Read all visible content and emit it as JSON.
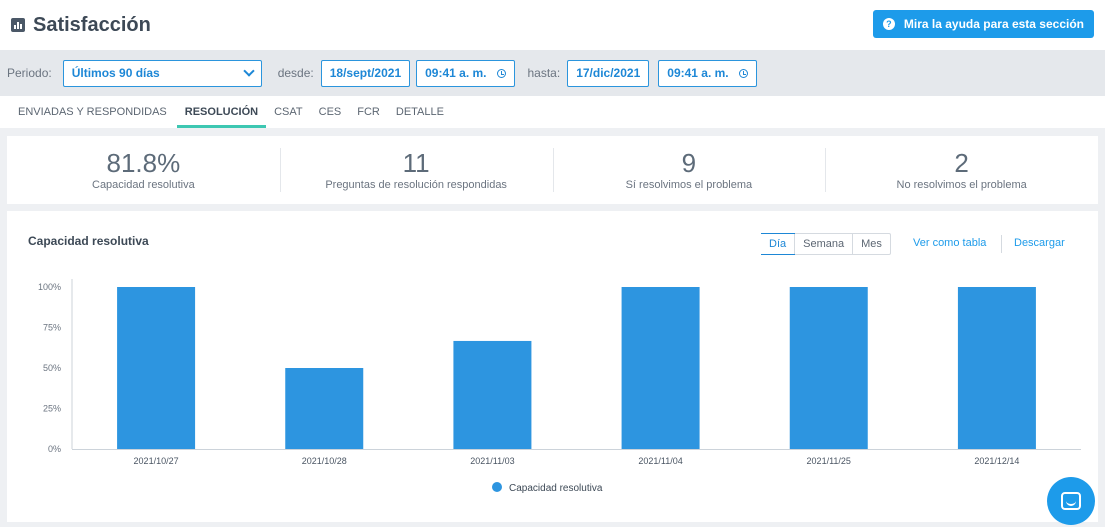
{
  "header": {
    "title": "Satisfacción",
    "help_label": "Mira la ayuda para esta sección"
  },
  "filters": {
    "period_label": "Periodo:",
    "period_value": "Últimos 90 días",
    "from_label": "desde:",
    "from_date": "18/sept/2021",
    "from_time": "09:41 a. m.",
    "to_label": "hasta:",
    "to_date": "17/dic/2021",
    "to_time": "09:41 a. m."
  },
  "tabs": [
    {
      "label": "ENVIADAS Y RESPONDIDAS"
    },
    {
      "label": "RESOLUCIÓN"
    },
    {
      "label": "CSAT"
    },
    {
      "label": "CES"
    },
    {
      "label": "FCR"
    },
    {
      "label": "DETALLE"
    }
  ],
  "active_tab": "RESOLUCIÓN",
  "stats": [
    {
      "value": "81.8%",
      "label": "Capacidad resolutiva"
    },
    {
      "value": "11",
      "label": "Preguntas de resolución respondidas"
    },
    {
      "value": "9",
      "label": "Sí resolvimos el problema"
    },
    {
      "value": "2",
      "label": "No resolvimos el problema"
    }
  ],
  "card": {
    "title": "Capacidad resolutiva",
    "granularity": [
      "Día",
      "Semana",
      "Mes"
    ],
    "active_granularity": "Día",
    "table_link": "Ver como tabla",
    "download_link": "Descargar"
  },
  "colors": {
    "accent": "#1d9bea",
    "bar": "#2d95e0",
    "tab_underline": "#3dc7b2"
  },
  "chart_data": {
    "type": "bar",
    "title": "",
    "categories": [
      "2021/10/27",
      "2021/10/28",
      "2021/11/03",
      "2021/11/04",
      "2021/11/25",
      "2021/12/14"
    ],
    "series": [
      {
        "name": "Capacidad resolutiva",
        "values": [
          100,
          50,
          66.7,
          100,
          100,
          100
        ]
      }
    ],
    "yticks": [
      "0%",
      "25%",
      "50%",
      "75%",
      "100%"
    ],
    "ylim": [
      0,
      100
    ],
    "grid": false,
    "legend": "bottom-center"
  },
  "icons": {
    "title": "bar-chart-icon",
    "help": "question-circle-icon",
    "period": "chevron-down-icon",
    "time": "clock-icon",
    "chat": "chat-bubble-icon"
  }
}
